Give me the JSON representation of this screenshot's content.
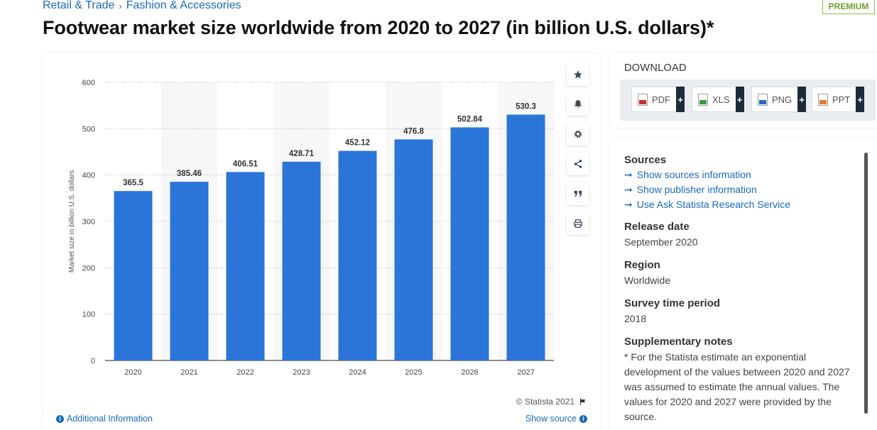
{
  "breadcrumb": {
    "item1": "Retail & Trade",
    "separator": "›",
    "item2": "Fashion & Accessories"
  },
  "premium_badge": "PREMIUM",
  "page_title": "Footwear market size worldwide from 2020 to 2027 (in billion U.S. dollars)*",
  "chart_data": {
    "type": "bar",
    "categories": [
      "2020",
      "2021",
      "2022",
      "2023",
      "2024",
      "2025",
      "2026",
      "2027"
    ],
    "values": [
      365.5,
      385.46,
      406.51,
      428.71,
      452.12,
      476.8,
      502.84,
      530.3
    ],
    "value_labels": [
      "365.5",
      "385.46",
      "406.51",
      "428.71",
      "452.12",
      "476.8",
      "502.84",
      "530.3"
    ],
    "title": "",
    "xlabel": "",
    "ylabel": "Market size in billion U.S. dollars",
    "ylim": [
      0,
      600
    ],
    "yticks": [
      "0",
      "100",
      "200",
      "300",
      "400",
      "500",
      "600"
    ],
    "grid": true,
    "bar_color": "#2b75d9"
  },
  "chart_tools": [
    "star-icon",
    "bell-icon",
    "gear-icon",
    "share-icon",
    "quote-icon",
    "print-icon"
  ],
  "chart_footer": {
    "copyright": "© Statista 2021",
    "additional_info": "Additional Information",
    "show_source": "Show source"
  },
  "download": {
    "title": "DOWNLOAD",
    "buttons": [
      {
        "label": "PDF",
        "plus": "+",
        "color": "#c8302f"
      },
      {
        "label": "XLS",
        "plus": "+",
        "color": "#3a9a3a"
      },
      {
        "label": "PNG",
        "plus": "+",
        "color": "#2d6ab3"
      },
      {
        "label": "PPT",
        "plus": "+",
        "color": "#e07b2a"
      }
    ]
  },
  "info": {
    "sources_title": "Sources",
    "sources_links": [
      "Show sources information",
      "Show publisher information",
      "Use Ask Statista Research Service"
    ],
    "release_title": "Release date",
    "release_value": "September 2020",
    "region_title": "Region",
    "region_value": "Worldwide",
    "survey_title": "Survey time period",
    "survey_value": "2018",
    "notes_title": "Supplementary notes",
    "notes_text": "* For the Statista estimate an exponential development of the values between 2020 and 2027 was assumed to estimate the annual values. The values for 2020 and 2027 were provided by the source."
  }
}
